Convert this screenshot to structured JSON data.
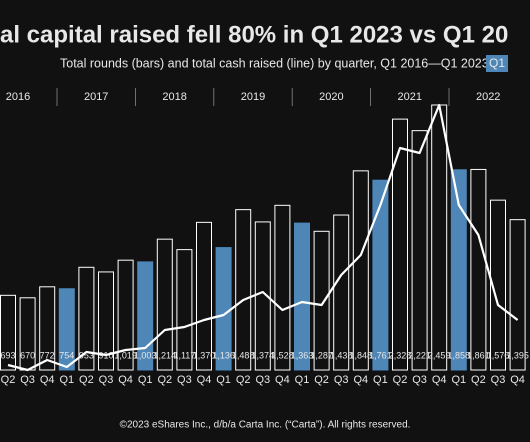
{
  "chart_data": {
    "type": "bar_line",
    "title": "al capital raised fell 80% in Q1 2023 vs Q1 20",
    "subtitle": "Total rounds (bars) and total cash raised (line) by quarter, Q1 2016—Q1 2023 |",
    "legend": {
      "label": "Q1",
      "color": "#4f86b8"
    },
    "footer": "©2023 eShares Inc., d/b/a Carta Inc. (“Carta”). All rights reserved.",
    "years": [
      "2016",
      "2017",
      "2018",
      "2019",
      "2020",
      "2021",
      "2022"
    ],
    "categories": [
      "Q2",
      "Q3",
      "Q4",
      "Q1",
      "Q2",
      "Q3",
      "Q4",
      "Q1",
      "Q2",
      "Q3",
      "Q4",
      "Q1",
      "Q2",
      "Q3",
      "Q4",
      "Q1",
      "Q2",
      "Q3",
      "Q4",
      "Q1",
      "Q2",
      "Q3",
      "Q4",
      "Q1",
      "Q2",
      "Q3",
      "Q4"
    ],
    "series": [
      {
        "name": "Total rounds",
        "color": "#111111",
        "values": [
          693,
          670,
          772,
          754,
          953,
          910,
          1019,
          1003,
          1214,
          1117,
          1370,
          1136,
          1488,
          1374,
          1528,
          1363,
          1287,
          1438,
          1848,
          1761,
          2328,
          2221,
          2459,
          1858,
          1861,
          1576,
          1395
        ],
        "value_labels": [
          "693",
          "670",
          "772",
          "754",
          "953",
          "910",
          "1,019",
          "1,003",
          "1,214",
          "1,117",
          "1,370",
          "1,136",
          "1,488",
          "1,374",
          "1,528",
          "1,363",
          "1,287",
          "1,438",
          "1,848",
          "1,761",
          "2,328",
          "2,221",
          "2,459",
          "1,858",
          "1,861",
          "1,576",
          "1,395"
        ]
      },
      {
        "name": "Total cash raised",
        "color": "#ffffff",
        "values": [
          30,
          25,
          35,
          28,
          43,
          40,
          45,
          47,
          65,
          68,
          75,
          80,
          95,
          103,
          85,
          93,
          90,
          120,
          140,
          190,
          247,
          242,
          290,
          190,
          160,
          90,
          75
        ]
      }
    ]
  }
}
